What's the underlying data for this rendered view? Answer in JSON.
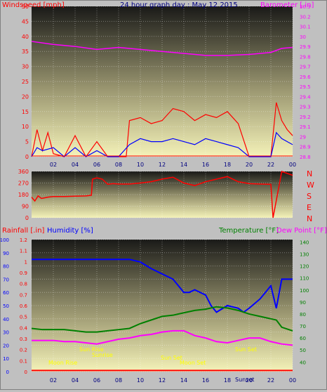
{
  "colors": {
    "windspeed": "#ff0000",
    "windgust": "#0000ff",
    "barometer": "#ff00ff",
    "direction": "#ff0000",
    "rainfall": "#ff0000",
    "humidity": "#0000ff",
    "temperature": "#008000",
    "dewpoint": "#ff00ff",
    "annotation": "#ffff00",
    "tick_text": "#000080"
  },
  "chart_data": [
    {
      "type": "line",
      "title": "24 hour graph day : May 12 2015",
      "left_label": "Windspeed [mph]",
      "right_label": "Barometer [.in]",
      "x_ticks": [
        "02",
        "04",
        "06",
        "08",
        "10",
        "12",
        "14",
        "16",
        "18",
        "20",
        "22",
        "00"
      ],
      "left_ticks": [
        "0",
        "5",
        "10",
        "15",
        "20",
        "25",
        "30",
        "35",
        "40",
        "45",
        "50"
      ],
      "right_ticks": [
        "28.8",
        "28.9",
        "29",
        "29.1",
        "29.2",
        "29.3",
        "29.4",
        "29.5",
        "29.6",
        "29.7",
        "29.8",
        "29.9",
        "30",
        "30.1",
        "30.2",
        "30.3"
      ],
      "ylim_left": [
        0,
        50
      ],
      "ylim_right": [
        28.8,
        30.3
      ],
      "series": [
        {
          "key": "barometer",
          "axis": "right",
          "x": [
            0,
            2,
            4,
            6,
            8,
            10,
            12,
            14,
            16,
            18,
            20,
            22,
            23,
            24
          ],
          "values": [
            29.95,
            29.92,
            29.9,
            29.87,
            29.89,
            29.87,
            29.85,
            29.83,
            29.81,
            29.81,
            29.82,
            29.84,
            29.88,
            29.89
          ]
        },
        {
          "key": "windspeed",
          "axis": "left",
          "x": [
            0,
            0.5,
            1,
            1.5,
            2,
            3,
            4,
            5,
            6,
            7,
            8,
            8.7,
            9,
            10,
            11,
            12,
            13,
            14,
            15,
            16,
            17,
            18,
            19,
            20,
            21,
            22,
            22.5,
            23,
            23.5,
            24
          ],
          "values": [
            0,
            9,
            2,
            8,
            1,
            0,
            7,
            0,
            5,
            0,
            0,
            0,
            12,
            13,
            11,
            12,
            16,
            15,
            12,
            14,
            13,
            15,
            11,
            0,
            0,
            0,
            18,
            12,
            9,
            7
          ]
        },
        {
          "key": "windgust",
          "axis": "left",
          "x": [
            0,
            0.5,
            1,
            2,
            3,
            4,
            5,
            6,
            7,
            8,
            9,
            10,
            11,
            12,
            13,
            14,
            15,
            16,
            17,
            18,
            19,
            20,
            21,
            22,
            22.5,
            23,
            24
          ],
          "values": [
            0,
            3,
            2,
            3,
            0,
            3,
            0,
            2,
            0,
            0,
            4,
            6,
            5,
            5,
            6,
            5,
            4,
            6,
            5,
            4,
            3,
            0,
            0,
            0,
            8,
            6,
            4
          ]
        }
      ]
    },
    {
      "type": "line",
      "left_ticks": [
        "0",
        "90",
        "180",
        "270",
        "360"
      ],
      "right_labels": [
        "N",
        "W",
        "S",
        "E",
        "N"
      ],
      "ylim": [
        0,
        360
      ],
      "series": [
        {
          "key": "direction",
          "x": [
            0,
            0.3,
            0.6,
            0.9,
            1.2,
            1.5,
            2,
            3,
            4,
            5,
            5.5,
            5.6,
            6,
            6.5,
            7,
            7.5,
            8,
            9,
            10,
            11,
            12,
            13,
            14,
            15,
            16,
            17,
            18,
            19,
            20,
            21,
            22,
            22.2,
            23,
            24
          ],
          "values": [
            160,
            130,
            170,
            150,
            155,
            160,
            165,
            165,
            168,
            170,
            175,
            300,
            310,
            300,
            260,
            265,
            262,
            262,
            270,
            280,
            300,
            315,
            270,
            250,
            280,
            300,
            320,
            280,
            265,
            262,
            260,
            0,
            360,
            330
          ]
        }
      ]
    },
    {
      "type": "line",
      "left_label": "Rainfall [.in]",
      "mid_label": "Humidity [%]",
      "right_label": "Temperature [°F]",
      "right_label2": "Dew Point [°F]",
      "rain_ticks": [
        "0",
        "0.1",
        "0.2",
        "0.3",
        "0.4",
        "0.5",
        "0.6",
        "0.7",
        "0.8",
        "0.9",
        "1",
        "1.1",
        "1.2"
      ],
      "humidity_ticks": [
        "0",
        "10",
        "20",
        "30",
        "40",
        "50",
        "60",
        "70",
        "80",
        "90",
        "100"
      ],
      "temp_ticks": [
        "40",
        "50",
        "60",
        "70",
        "80",
        "90",
        "100",
        "110",
        "120",
        "130",
        "140"
      ],
      "ylim_rain": [
        0,
        1.2
      ],
      "ylim_humidity": [
        0,
        100
      ],
      "ylim_temp": [
        32,
        142
      ],
      "annotations": [
        "Sun Rise",
        "Moon Rise",
        "Sunrise",
        "Sun Set",
        "Moon Set",
        "Sun Set",
        "Sunset"
      ],
      "series": [
        {
          "key": "humidity",
          "axis": "humidity",
          "x": [
            0,
            1,
            2,
            3,
            4,
            5,
            6,
            7,
            8,
            9,
            10,
            11,
            12,
            13,
            14,
            14.5,
            15,
            16,
            16.5,
            17,
            18,
            19,
            19.5,
            20,
            21,
            22,
            22.5,
            23,
            24
          ],
          "values": [
            85,
            85,
            85,
            85,
            85,
            85,
            85,
            85,
            85,
            85,
            83,
            78,
            74,
            70,
            60,
            60,
            62,
            58,
            50,
            45,
            50,
            48,
            45,
            48,
            55,
            65,
            48,
            70,
            70
          ]
        },
        {
          "key": "temperature",
          "axis": "temp",
          "x": [
            0,
            1,
            2,
            3,
            4,
            5,
            6,
            7,
            8,
            9,
            10,
            11,
            12,
            13,
            14,
            15,
            16,
            17,
            18,
            19,
            20,
            21,
            22,
            22.5,
            23,
            24
          ],
          "values": [
            68,
            67,
            67,
            67,
            66,
            65,
            65,
            66,
            67,
            68,
            72,
            75,
            78,
            79,
            81,
            83,
            84,
            86,
            85,
            83,
            80,
            78,
            76,
            75,
            69,
            66
          ]
        },
        {
          "key": "dewpoint",
          "axis": "temp",
          "x": [
            0,
            1,
            2,
            3,
            4,
            5,
            6,
            7,
            8,
            9,
            10,
            11,
            12,
            13,
            14,
            15,
            16,
            17,
            18,
            19,
            20,
            21,
            22,
            23,
            24
          ],
          "values": [
            58,
            58,
            58,
            57,
            57,
            56,
            55,
            57,
            59,
            60,
            62,
            63,
            65,
            66,
            66,
            62,
            60,
            57,
            56,
            58,
            60,
            60,
            57,
            55,
            54
          ]
        },
        {
          "key": "rainfall",
          "axis": "rain",
          "x": [
            0,
            24
          ],
          "values": [
            0.01,
            0.01
          ]
        }
      ]
    }
  ]
}
